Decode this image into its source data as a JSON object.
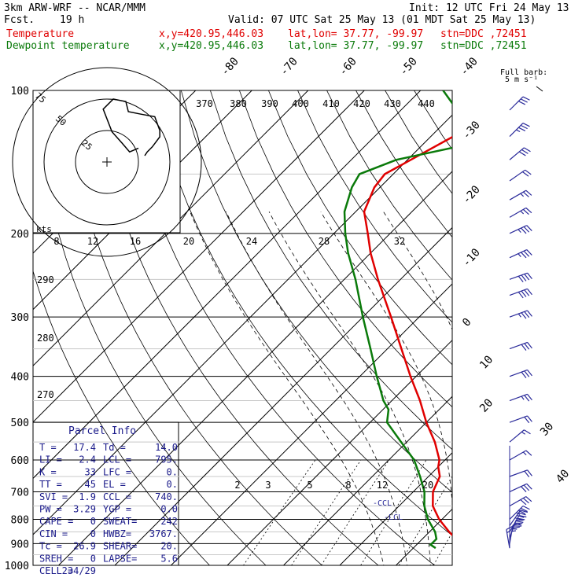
{
  "header": {
    "title": "3km ARW-WRF -- NCAR/MMM",
    "init": "Init: 12 UTC Fri 24 May 13",
    "fcst_label": "Fcst.",
    "fcst_value": "19 h",
    "valid": "Valid: 07 UTC Sat 25 May 13 (01 MDT Sat 25 May 13)",
    "temperature_label": "Temperature",
    "dewpoint_label": "Dewpoint temperature",
    "xy": "x,y=420.95,446.03",
    "latlon": "lat,lon= 37.77, -99.97",
    "stn": "stn=DDC ,72451"
  },
  "colors": {
    "temperature": "#e00000",
    "dewpoint": "#0a7a0a",
    "barbs": "#2a2a9a",
    "grid": "#000000"
  },
  "barb_key": {
    "line1": "Full barb:",
    "line2": "5 m s⁻¹"
  },
  "parcel_info": {
    "title": "Parcel Info",
    "rows": [
      {
        "l": "T  =",
        "lv": "17.4",
        "r": "Td =",
        "rv": "14.0"
      },
      {
        "l": "LI =",
        "lv": "2.4",
        "r": "LCL =",
        "rv": "795."
      },
      {
        "l": "K  =",
        "lv": "33",
        "r": "LFC =",
        "rv": "0."
      },
      {
        "l": "TT =",
        "lv": "45",
        "r": "EL  =",
        "rv": "0."
      },
      {
        "l": "SVI =",
        "lv": "1.9",
        "r": "CCL =",
        "rv": "740."
      },
      {
        "l": "PW =",
        "lv": "3.29",
        "r": "YGP =",
        "rv": "0.0"
      },
      {
        "l": "CAPE =",
        "lv": "0",
        "r": "SWEAT=",
        "rv": "242"
      },
      {
        "l": "CIN =",
        "lv": "0",
        "r": "HWBZ=",
        "rv": "3767."
      },
      {
        "l": "Tc =",
        "lv": "26.9",
        "r": "SHEAR=",
        "rv": "20."
      },
      {
        "l": "SREH =",
        "lv": "0",
        "r": "LAPSE=",
        "rv": "5.6"
      },
      {
        "l": "CELL =",
        "lv": "234/29",
        "r": "",
        "rv": ""
      }
    ]
  },
  "hodograph": {
    "units_label": "kts",
    "ring_labels": [
      "25",
      "50",
      "75"
    ]
  },
  "markers": {
    "ccl": "-CCL",
    "lcl": "-LCL"
  },
  "chart_data": {
    "type": "skew-T log-p sounding",
    "pressure_levels_hPa": [
      100,
      200,
      300,
      400,
      500,
      600,
      700,
      800,
      900,
      1000
    ],
    "mixing_ratio_labels_gkg": [
      "2",
      "3",
      "5",
      "8",
      "12",
      "20"
    ],
    "theta_e_labels_K": [
      "370",
      "380",
      "390",
      "400",
      "410",
      "420",
      "430",
      "440"
    ],
    "theta_labels_K": [
      "290",
      "280",
      "270"
    ],
    "upper_temp_scale_labels": [
      "8",
      "12",
      "16",
      "20",
      "24",
      "28",
      "32"
    ],
    "isotherm_labels_C": [
      "-80",
      "-70",
      "-60",
      "-50",
      "-40",
      "-30",
      "-20",
      "-10",
      "0",
      "10",
      "20",
      "30",
      "40"
    ],
    "series": [
      {
        "name": "Temperature",
        "points": [
          [
            920,
            17.4
          ],
          [
            905,
            19.0
          ],
          [
            880,
            16.0
          ],
          [
            850,
            13.5
          ],
          [
            800,
            9.5
          ],
          [
            750,
            6.0
          ],
          [
            700,
            3.5
          ],
          [
            650,
            2.0
          ],
          [
            620,
            0.0
          ],
          [
            600,
            -1.0
          ],
          [
            550,
            -5.0
          ],
          [
            500,
            -10.0
          ],
          [
            450,
            -15.0
          ],
          [
            400,
            -21.0
          ],
          [
            350,
            -27.5
          ],
          [
            300,
            -35.0
          ],
          [
            250,
            -44.0
          ],
          [
            220,
            -50.0
          ],
          [
            200,
            -54.0
          ],
          [
            180,
            -58.5
          ],
          [
            160,
            -61.0
          ],
          [
            150,
            -61.5
          ],
          [
            125,
            -56.0
          ],
          [
            100,
            -50.0
          ]
        ]
      },
      {
        "name": "Dewpoint temperature",
        "points": [
          [
            920,
            14.0
          ],
          [
            905,
            12.5
          ],
          [
            880,
            12.5
          ],
          [
            850,
            11.0
          ],
          [
            800,
            7.5
          ],
          [
            750,
            4.5
          ],
          [
            700,
            2.0
          ],
          [
            650,
            -1.5
          ],
          [
            600,
            -5.5
          ],
          [
            550,
            -11.0
          ],
          [
            500,
            -17.0
          ],
          [
            470,
            -19.0
          ],
          [
            450,
            -21.5
          ],
          [
            400,
            -27.0
          ],
          [
            350,
            -33.0
          ],
          [
            300,
            -40.0
          ],
          [
            250,
            -48.0
          ],
          [
            220,
            -54.0
          ],
          [
            200,
            -58.0
          ],
          [
            180,
            -62.0
          ],
          [
            160,
            -65.0
          ],
          [
            150,
            -66.0
          ],
          [
            140,
            -62.0
          ],
          [
            130,
            -52.0
          ],
          [
            120,
            -55.0
          ],
          [
            110,
            -60.0
          ],
          [
            100,
            -66.0
          ]
        ]
      }
    ],
    "wind_barbs": [
      {
        "p": 920,
        "dir": 170,
        "kt": 15
      },
      {
        "p": 900,
        "dir": 190,
        "kt": 25
      },
      {
        "p": 875,
        "dir": 200,
        "kt": 35
      },
      {
        "p": 850,
        "dir": 210,
        "kt": 40
      },
      {
        "p": 825,
        "dir": 215,
        "kt": 40
      },
      {
        "p": 800,
        "dir": 225,
        "kt": 35
      },
      {
        "p": 750,
        "dir": 240,
        "kt": 30
      },
      {
        "p": 700,
        "dir": 245,
        "kt": 30
      },
      {
        "p": 650,
        "dir": 250,
        "kt": 20
      },
      {
        "p": 600,
        "dir": 240,
        "kt": 15
      },
      {
        "p": 550,
        "dir": 230,
        "kt": 15
      },
      {
        "p": 500,
        "dir": 250,
        "kt": 20
      },
      {
        "p": 450,
        "dir": 250,
        "kt": 25
      },
      {
        "p": 400,
        "dir": 250,
        "kt": 30
      },
      {
        "p": 350,
        "dir": 250,
        "kt": 30
      },
      {
        "p": 300,
        "dir": 250,
        "kt": 35
      },
      {
        "p": 270,
        "dir": 250,
        "kt": 40
      },
      {
        "p": 250,
        "dir": 250,
        "kt": 40
      },
      {
        "p": 225,
        "dir": 245,
        "kt": 35
      },
      {
        "p": 200,
        "dir": 245,
        "kt": 35
      },
      {
        "p": 185,
        "dir": 240,
        "kt": 25
      },
      {
        "p": 170,
        "dir": 240,
        "kt": 25
      },
      {
        "p": 155,
        "dir": 235,
        "kt": 20
      },
      {
        "p": 140,
        "dir": 230,
        "kt": 30
      },
      {
        "p": 125,
        "dir": 225,
        "kt": 35
      },
      {
        "p": 110,
        "dir": 225,
        "kt": 30
      }
    ],
    "hodograph_kts": [
      [
        -5,
        11
      ],
      [
        -12,
        8
      ],
      [
        -18,
        15
      ],
      [
        -26,
        24
      ],
      [
        -33,
        42
      ],
      [
        -25,
        50
      ],
      [
        -15,
        48
      ],
      [
        -13,
        40
      ],
      [
        -3,
        38
      ],
      [
        8,
        36
      ],
      [
        12,
        25
      ],
      [
        12,
        20
      ],
      [
        6,
        12
      ],
      [
        2,
        8
      ],
      [
        0,
        5
      ]
    ],
    "ylabel": "",
    "xlabel": ""
  }
}
